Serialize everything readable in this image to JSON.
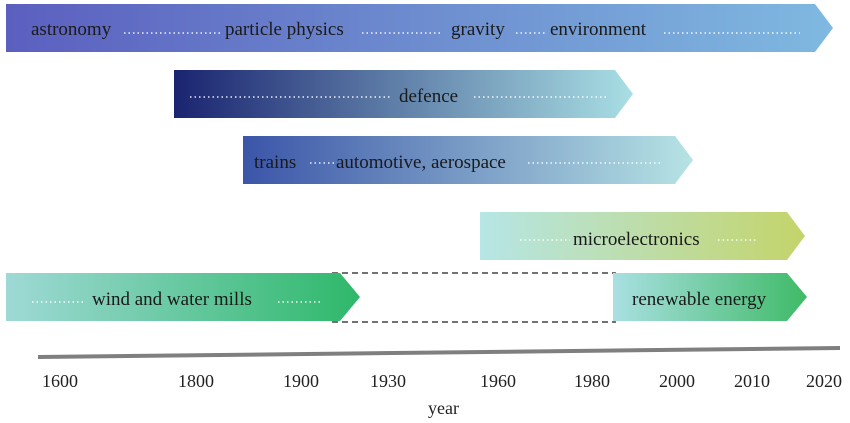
{
  "arrows": [
    {
      "id": "arrow-science",
      "labels": [
        "astronomy",
        "particle physics",
        "gravity",
        "environment"
      ],
      "colors": [
        "#5b5fbf",
        "#7fb9e0"
      ]
    },
    {
      "id": "arrow-defence",
      "labels": [
        "defence"
      ],
      "colors": [
        "#1a2470",
        "#a9dfe4"
      ]
    },
    {
      "id": "arrow-transport",
      "labels": [
        "trains",
        "automotive, aerospace"
      ],
      "colors": [
        "#3b55a8",
        "#b7e3e4"
      ]
    },
    {
      "id": "arrow-microelectronics",
      "labels": [
        "microelectronics"
      ],
      "colors": [
        "#b6e6e6",
        "#c4d46a"
      ]
    },
    {
      "id": "arrow-mills",
      "labels": [
        "wind and water mills"
      ],
      "colors": [
        "#9fd9d6",
        "#2eb86a"
      ]
    },
    {
      "id": "arrow-renewable",
      "labels": [
        "renewable energy"
      ],
      "colors": [
        "#a9e0e2",
        "#3fba67"
      ]
    }
  ],
  "axis": {
    "ticks": [
      "1600",
      "1800",
      "1900",
      "1930",
      "1960",
      "1980",
      "2000",
      "2010",
      "2020"
    ],
    "label": "year",
    "color": "#7f7f7f"
  }
}
